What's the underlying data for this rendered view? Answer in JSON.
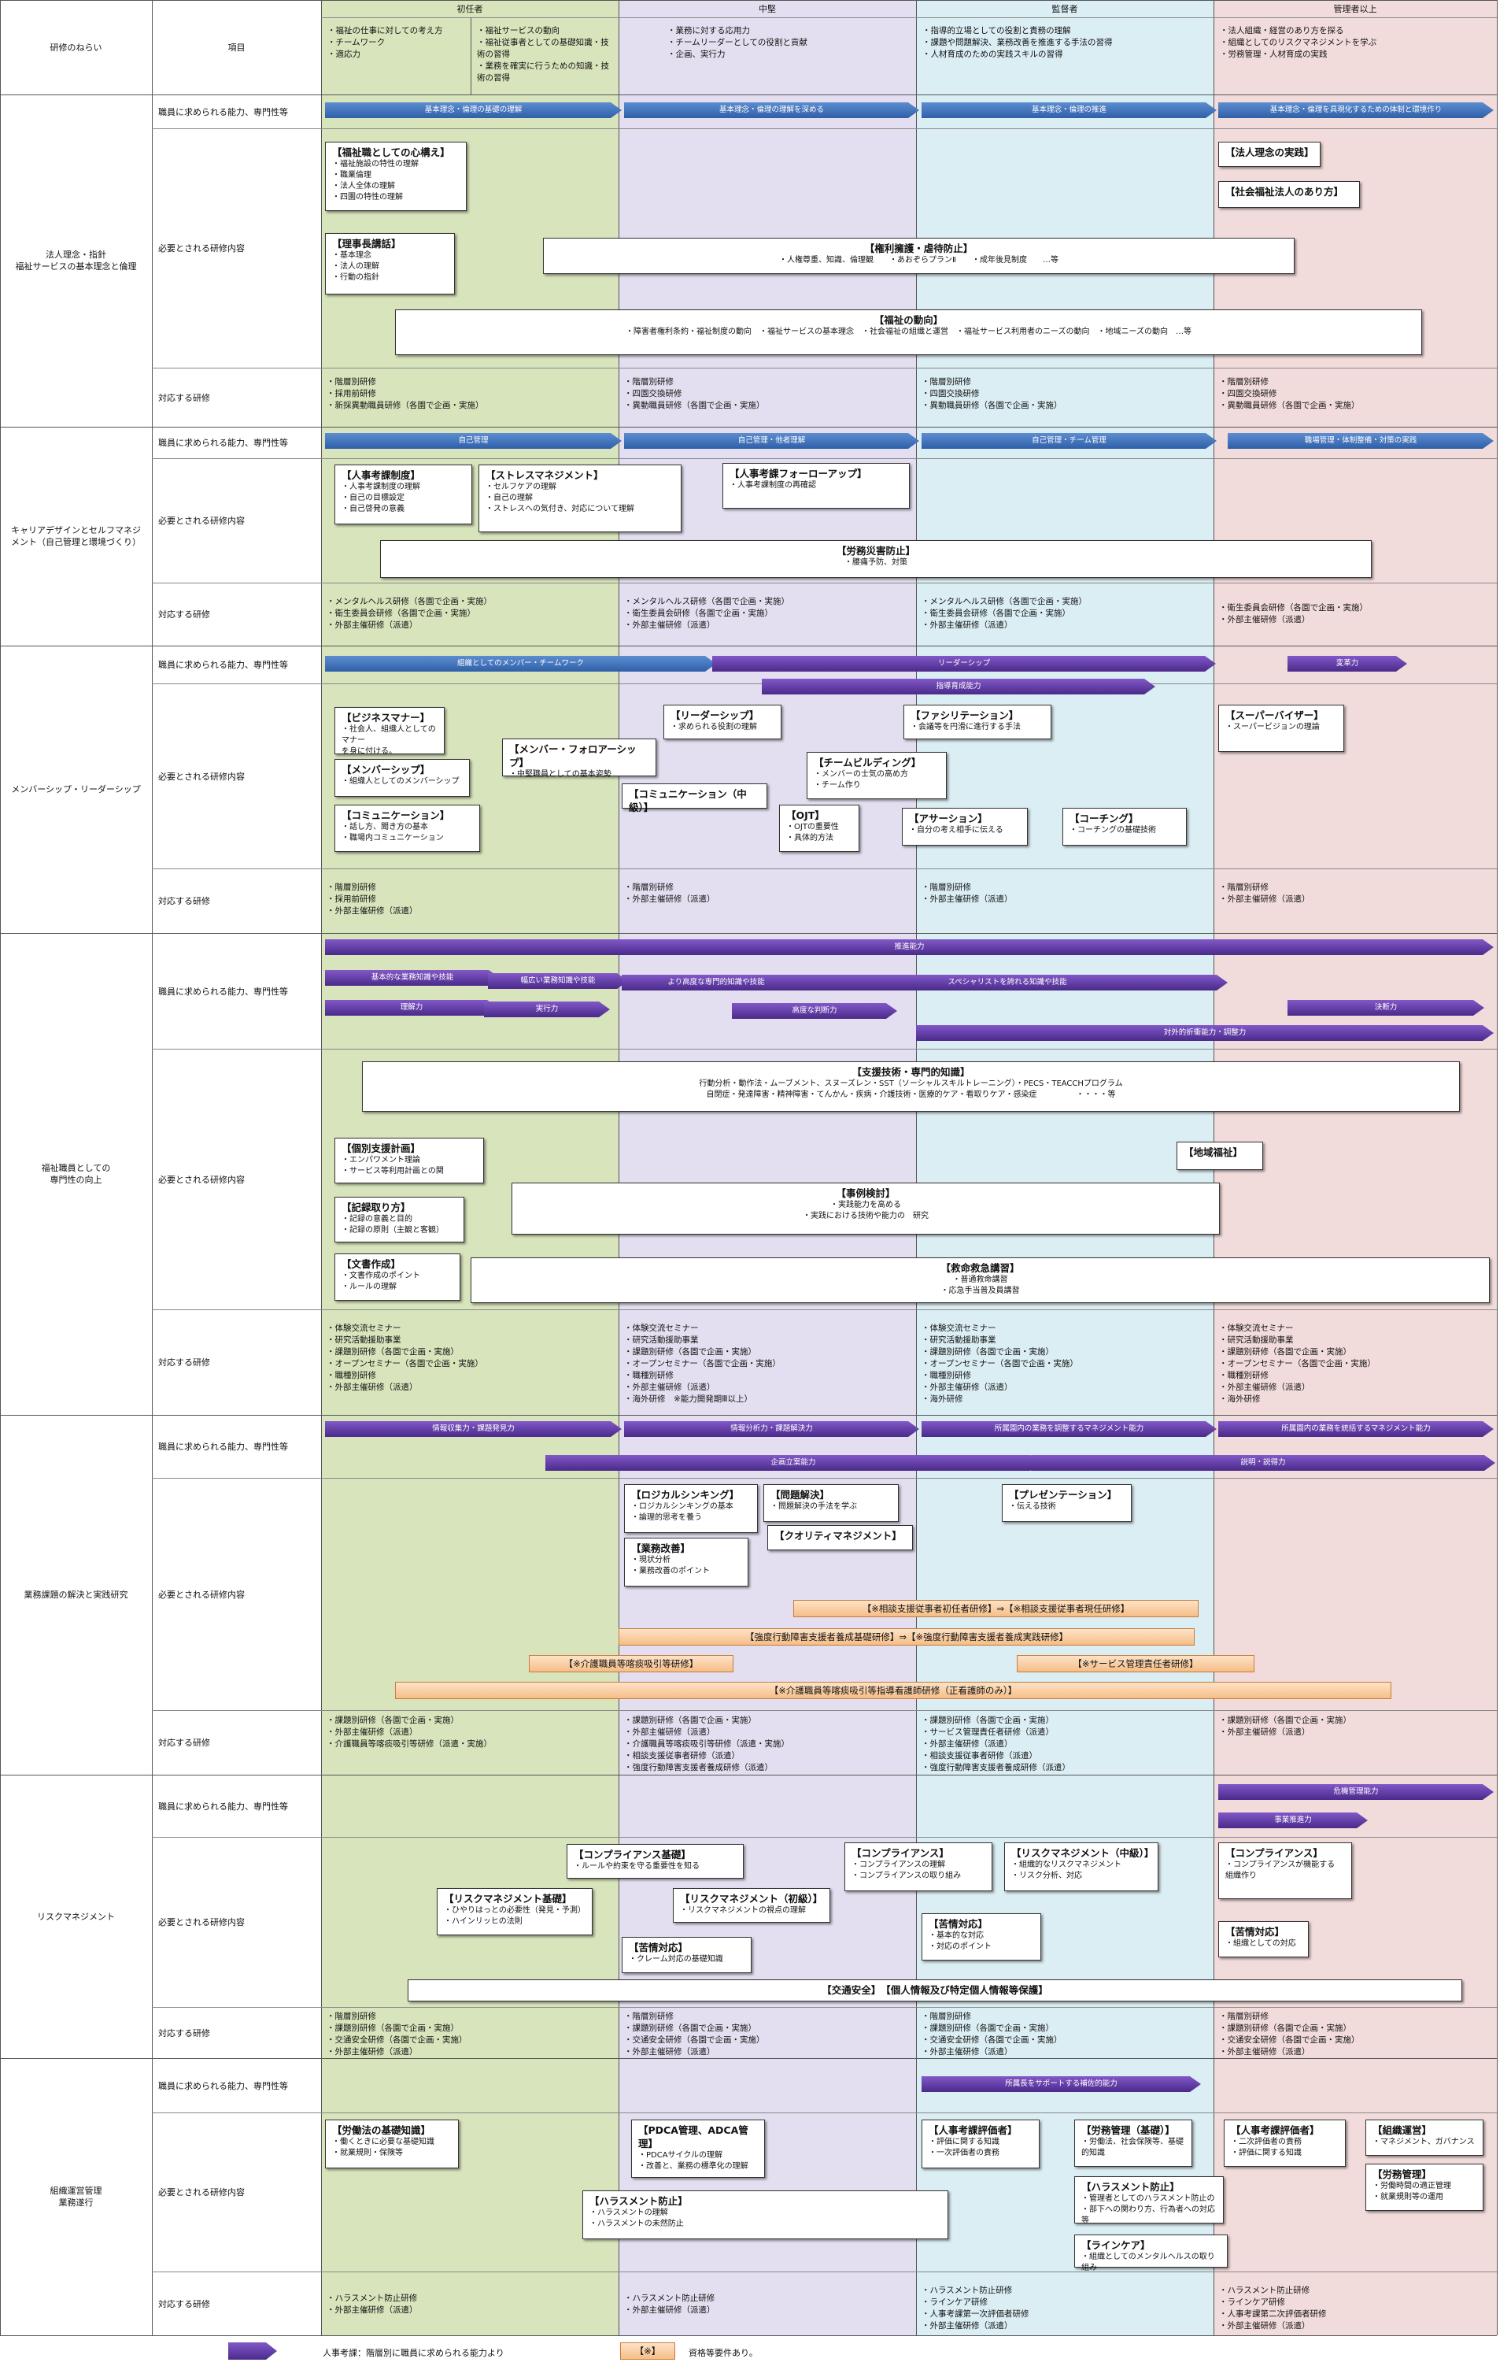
{
  "colors": {
    "col_label": "#ffffff",
    "col_shonin": "#d8e4bc",
    "col_chuken": "#e4dff0",
    "col_kantoku": "#dbeef3",
    "col_kanri": "#f2dcdb",
    "arrow_blue": "#3a6fbf",
    "arrow_purple": "#5b2d9e"
  },
  "header": {
    "aim_label": "研修のねらい",
    "item_label": "項目",
    "levels": [
      "初任者",
      "中堅",
      "監督者",
      "管理者以上"
    ],
    "aims": [
      "・福祉の仕事に対しての考え方\n・チームワーク\n・適応力",
      "・福祉サービスの動向\n・福祉従事者としての基礎知識・技\n術の習得\n・業務を確実に行うための知識・技\n術の習得",
      "・業務に対する応用力\n・チームリーダーとしての役割と貢献\n・企画、実行力",
      "・指導的立場としての役割と責務の理解\n・課題や問題解決、業務改善を推進する手法の習得\n・人材育成のための実践スキルの習得",
      "・法人組織・経営のあり方を探る\n・組織としてのリスクマネジメントを学ぶ\n・労務管理・人材育成の実践"
    ]
  },
  "row_labels": {
    "ability": "職員に求められる能力、専門性等",
    "content": "必要とされる研修内容",
    "courses": "対応する研修"
  },
  "sections": [
    {
      "name": "法人理念・指針\n福祉サービスの基本理念と倫理",
      "arrows": [
        "基本理念・倫理の基礎の理解",
        "基本理念・倫理の理解を深める",
        "基本理念・倫理の推進",
        "基本理念・倫理を具現化するための体制と環境作り"
      ],
      "boxes": [
        {
          "title": "【福祉職としての心構え】",
          "body": "・福祉施設の特性の理解\n・職業倫理\n・法人全体の理解\n・四園の特性の理解"
        },
        {
          "title": "【理事長講話】",
          "body": "・基本理念\n・法人の理解\n・行動の指針"
        },
        {
          "title": "【権利擁護・虐待防止】",
          "body": "・人権尊重、知識、倫理観　　・あおぞらプランⅡ　　・成年後見制度　　…等"
        },
        {
          "title": "【福祉の動向】",
          "body": "・障害者権利条約・福祉制度の動向　・福祉サービスの基本理念　・社会福祉の組織と運営　・福祉サービス利用者のニーズの動向　・地域ニーズの動向　…等"
        },
        {
          "title": "【法人理念の実践】",
          "body": ""
        },
        {
          "title": "【社会福祉法人のあり方】",
          "body": ""
        }
      ],
      "courses": [
        "・階層別研修\n・採用前研修\n・新採異動職員研修（各園で企画・実施）",
        "・階層別研修\n・四園交換研修\n・異動職員研修（各園で企画・実施）",
        "・階層別研修\n・四園交換研修\n・異動職員研修（各園で企画・実施）",
        "・階層別研修\n・四園交換研修\n・異動職員研修（各園で企画・実施）"
      ]
    },
    {
      "name": "キャリアデザインとセルフマネジ\nメント（自己管理と環境づくり）",
      "arrows": [
        "自己管理",
        "自己管理・他者理解",
        "自己管理・チーム管理",
        "職場管理・体制整備・対策の実践"
      ],
      "boxes": [
        {
          "title": "【人事考課制度】",
          "body": "・人事考課制度の理解\n・自己の目標設定\n・自己啓発の意義"
        },
        {
          "title": "【ストレスマネジメント】",
          "body": "・セルフケアの理解\n・自己の理解\n・ストレスへの気付き、対応について理解"
        },
        {
          "title": "【人事考課フォーローアップ】",
          "body": "・人事考課制度の再確認"
        },
        {
          "title": "【労務災害防止】",
          "body": "・腰痛予防、対策"
        }
      ],
      "courses": [
        "・メンタルヘルス研修（各園で企画・実施）\n・衛生委員会研修（各園で企画・実施）\n・外部主催研修（派遣）",
        "・メンタルヘルス研修（各園で企画・実施）\n・衛生委員会研修（各園で企画・実施）\n・外部主催研修（派遣）",
        "・メンタルヘルス研修（各園で企画・実施）\n・衛生委員会研修（各園で企画・実施）\n・外部主催研修（派遣）",
        "・衛生委員会研修（各園で企画・実施）\n・外部主催研修（派遣）"
      ]
    },
    {
      "name": "メンバーシップ・リーダーシップ",
      "arrows": [
        "組織としてのメンバー・チームワーク",
        "リーダーシップ",
        "変革力",
        "指導育成能力"
      ],
      "boxes": [
        {
          "title": "【ビジネスマナー】",
          "body": "・社会人、組織人としてのマナー\nを身に付ける。"
        },
        {
          "title": "【メンバーシップ】",
          "body": "・組織人としてのメンバーシップ"
        },
        {
          "title": "【コミュニケーション】",
          "body": "・話し方、聞き方の基本\n・職場内コミュニケーション"
        },
        {
          "title": "【メンバー・フォロアーシップ】",
          "body": "・中堅職員としての基本姿勢"
        },
        {
          "title": "【リーダーシップ】",
          "body": "・求められる役割の理解"
        },
        {
          "title": "【コミュニケーション（中級）】",
          "body": ""
        },
        {
          "title": "【チームビルディング】",
          "body": "・メンバーの士気の高め方\n・チーム作り"
        },
        {
          "title": "【OJT】",
          "body": "・OJTの重要性\n・具体的方法"
        },
        {
          "title": "【ファシリテーション】",
          "body": "・会議等を円滑に進行する手法"
        },
        {
          "title": "【アサーション】",
          "body": "・自分の考え相手に伝える"
        },
        {
          "title": "【コーチング】",
          "body": "・コーチングの基礎技術"
        },
        {
          "title": "【スーパーバイザー】",
          "body": "・スーパービジョンの理論"
        }
      ],
      "courses": [
        "・階層別研修\n・採用前研修\n・外部主催研修（派遣）",
        "・階層別研修\n・外部主催研修（派遣）",
        "・階層別研修\n・外部主催研修（派遣）",
        "・階層別研修\n・外部主催研修（派遣）"
      ]
    },
    {
      "name": "福祉職員としての\n専門性の向上",
      "arrows": [
        "推進能力",
        "基本的な業務知識や技能",
        "幅広い業務知識や技能",
        "より高度な専門的知識や技能",
        "スペシャリストを誇れる知識や技能",
        "理解力",
        "実行力",
        "高度な判断力",
        "決断力",
        "対外的折衝能力・調整力"
      ],
      "boxes": [
        {
          "title": "【支援技術・専門的知識】",
          "body": "行動分析・動作法・ムーブメント、スヌーズレン・SST（ソーシャルスキルトレーニング）・PECS・TEACCHプログラム\n自閉症・発達障害・精神障害・てんかん・疾病・介護技術・医療的ケア・看取りケア・感染症　　　　　・・・・等"
        },
        {
          "title": "【個別支援計画】",
          "body": "・エンパワメント理論\n・サービス等利用計画との関"
        },
        {
          "title": "【記録取り方】",
          "body": "・記録の意義と目的\n・記録の原則（主観と客観）"
        },
        {
          "title": "【文書作成】",
          "body": "・文書作成のポイント\n・ルールの理解"
        },
        {
          "title": "【事例検討】",
          "body": "・実践能力を高める\n・実践における技術や能力の　研究"
        },
        {
          "title": "【救命救急講習】",
          "body": "・普通救命講習\n・応急手当普及員講習"
        },
        {
          "title": "【地域福祉】",
          "body": ""
        }
      ],
      "courses": [
        "・体験交流セミナー\n・研究活動援助事業\n・課題別研修（各園で企画・実施）\n・オープンセミナー（各園で企画・実施）\n・職種別研修\n・外部主催研修（派遣）",
        "・体験交流セミナー\n・研究活動援助事業\n・課題別研修（各園で企画・実施）\n・オープンセミナー（各園で企画・実施）\n・職種別研修\n・外部主催研修（派遣）\n・海外研修　※能力開発期Ⅲ以上）",
        "・体験交流セミナー\n・研究活動援助事業\n・課題別研修（各園で企画・実施）\n・オープンセミナー（各園で企画・実施）\n・職種別研修\n・外部主催研修（派遣）\n・海外研修",
        "・体験交流セミナー\n・研究活動援助事業\n・課題別研修（各園で企画・実施）\n・オープンセミナー（各園で企画・実施）\n・職種別研修\n・外部主催研修（派遣）\n・海外研修"
      ]
    },
    {
      "name": "業務課題の解決と実践研究",
      "arrows": [
        "情報収集力・課題発見力",
        "情報分析力・課題解決力",
        "所属園内の業務を調整するマネジメント能力",
        "所属園内の業務を統括するマネジメント能力",
        "企画立案能力",
        "説明・説得力"
      ],
      "boxes": [
        {
          "title": "【ロジカルシンキング】",
          "body": "・ロジカルシンキングの基本\n・論理的思考を養う"
        },
        {
          "title": "【問題解決】",
          "body": "・問題解決の手法を学ぶ"
        },
        {
          "title": "【業務改善】",
          "body": "・現状分析\n・業務改善のポイント"
        },
        {
          "title": "【クオリティマネジメント】",
          "body": ""
        },
        {
          "title": "【プレゼンテーション】",
          "body": "・伝える技術"
        }
      ],
      "orange": [
        "【※相談支援従事者初任者研修】⇒【※相談支援従事者現任研修】",
        "【強度行動障害支援者養成基礎研修】⇒【※強度行動障害支援者養成実践研修】",
        "【※介護職員等喀痰吸引等研修】",
        "【※サービス管理責任者研修】",
        "【※介護職員等喀痰吸引等指導看護師研修（正看護師のみ）】"
      ],
      "courses": [
        "・課題別研修（各園で企画・実施）\n・外部主催研修（派遣）\n・介護職員等喀痰吸引等研修（派遣・実施）",
        "・課題別研修（各園で企画・実施）\n・外部主催研修（派遣）\n・介護職員等喀痰吸引等研修（派遣・実施）\n・相談支援従事者研修（派遣）\n・強度行動障害支援者養成研修（派遣）",
        "・課題別研修（各園で企画・実施）\n・サービス管理責任者研修（派遣）\n・外部主催研修（派遣）\n・相談支援従事者研修（派遣）\n・強度行動障害支援者養成研修（派遣）",
        "・課題別研修（各園で企画・実施）\n・外部主催研修（派遣）"
      ]
    },
    {
      "name": "リスクマネジメント",
      "arrows": [
        "危機管理能力",
        "事業推進力"
      ],
      "boxes": [
        {
          "title": "【コンプライアンス基礎】",
          "body": "・ルールや約束を守る重要性を知る"
        },
        {
          "title": "【リスクマネジメント基礎】",
          "body": "・ひやりはっとの必要性（発見・予測）\n・ハインリッヒの法則"
        },
        {
          "title": "【リスクマネジメント（初級）】",
          "body": "・リスクマネジメントの視点の理解"
        },
        {
          "title": "【苦情対応】",
          "body": "・クレーム対応の基礎知識"
        },
        {
          "title": "【コンプライアンス】",
          "body": "・コンプライアンスの理解\n・コンプライアンスの取り組み"
        },
        {
          "title": "【リスクマネジメント（中級）】",
          "body": "・組織的なリスクマネジメント\n・リスク分析、対応"
        },
        {
          "title": "【苦情対応】",
          "body": "・基本的な対応\n・対応のポイント"
        },
        {
          "title": "【コンプライアンス】",
          "body": "・コンプライアンスが機能する\n組織作り"
        },
        {
          "title": "【苦情対応】",
          "body": "・組織としての対応"
        },
        {
          "title": "【交通安全】　【個人情報及び特定個人情報等保護】",
          "body": ""
        }
      ],
      "courses": [
        "・階層別研修\n・課題別研修（各園で企画・実施）\n・交通安全研修（各園で企画・実施）\n・外部主催研修（派遣）",
        "・階層別研修\n・課題別研修（各園で企画・実施）\n・交通安全研修（各園で企画・実施）\n・外部主催研修（派遣）",
        "・階層別研修\n・課題別研修（各園で企画・実施）\n・交通安全研修（各園で企画・実施）\n・外部主催研修（派遣）",
        "・階層別研修\n・課題別研修（各園で企画・実施）\n・交通安全研修（各園で企画・実施）\n・外部主催研修（派遣）"
      ]
    },
    {
      "name": "組織運営管理\n業務遂行",
      "arrows": [
        "所属長をサポートする補佐的能力"
      ],
      "boxes": [
        {
          "title": "【労働法の基礎知識】",
          "body": "・働くときに必要な基礎知識\n・就業規則・保険等"
        },
        {
          "title": "【PDCA管理、ADCA管理】",
          "body": "・PDCAサイクルの理解\n・改善と、業務の標準化の理解"
        },
        {
          "title": "【ハラスメント防止】",
          "body": "・ハラスメントの理解\n・ハラスメントの未然防止"
        },
        {
          "title": "【人事考課評価者】",
          "body": "・評価に関する知識\n・一次評価者の責務"
        },
        {
          "title": "【労務管理（基礎）】",
          "body": "・労働法、社会保険等、基礎\n的知識"
        },
        {
          "title": "【ハラスメント防止】",
          "body": "・管理者としてのハラスメント防止の\n・部下への関わり方、行為者への対応等"
        },
        {
          "title": "【ラインケア】",
          "body": "・組織としてのメンタルヘルスの取り組み"
        },
        {
          "title": "【人事考課評価者】",
          "body": "・二次評価者の責務\n・評価に関する知識"
        },
        {
          "title": "【組織運営】",
          "body": "・マネジメント、ガバナンス"
        },
        {
          "title": "【労務管理】",
          "body": "・労働時間の適正管理\n・就業規則等の運用"
        }
      ],
      "courses": [
        "・ハラスメント防止研修\n・外部主催研修（派遣）",
        "・ハラスメント防止研修\n・外部主催研修（派遣）",
        "・ハラスメント防止研修\n・ラインケア研修\n・人事考課第一次評価者研修\n・外部主催研修（派遣）",
        "・ハラスメント防止研修\n・ラインケア研修\n・人事考課第二次評価者研修\n・外部主催研修（派遣）"
      ]
    }
  ],
  "legend": {
    "arrow_text": "人事考課：階層別に職員に求められる能力より",
    "orange_mark": "【※】",
    "orange_text": "資格等要件あり。"
  }
}
